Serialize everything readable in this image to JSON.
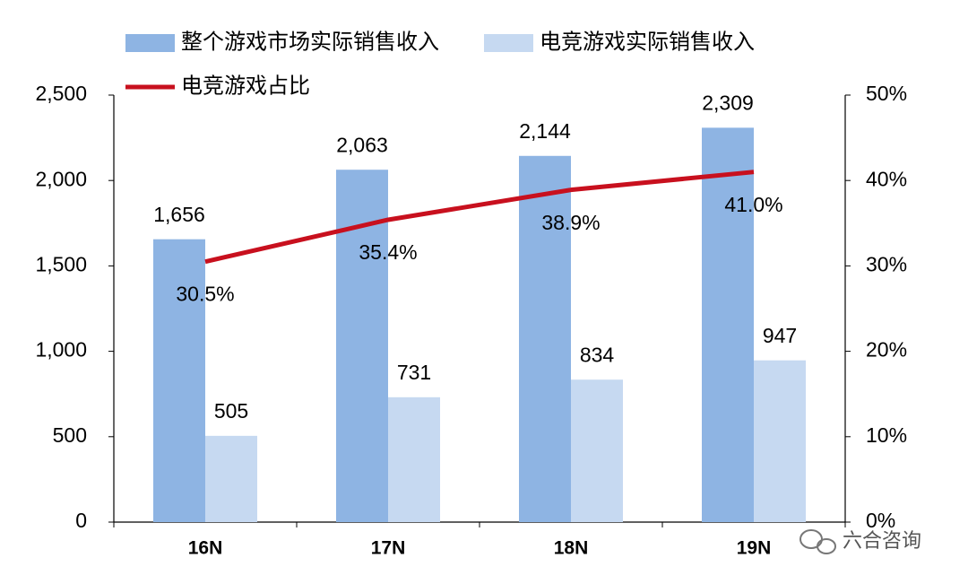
{
  "chart_data": {
    "type": "bar",
    "categories": [
      "16N",
      "17N",
      "18N",
      "19N"
    ],
    "series": [
      {
        "name": "整个游戏市场实际销售收入",
        "type": "bar",
        "color": "#8eb4e3",
        "values": [
          1656,
          2063,
          2144,
          2309
        ],
        "value_labels": [
          "1,656",
          "2,063",
          "2,144",
          "2,309"
        ]
      },
      {
        "name": "电竞游戏实际销售收入",
        "type": "bar",
        "color": "#c6d9f1",
        "values": [
          505,
          731,
          834,
          947
        ]
      },
      {
        "name": "电竞游戏占比",
        "type": "line",
        "axis": "y2",
        "color": "#c8101e",
        "values": [
          30.5,
          35.4,
          38.9,
          41.0
        ],
        "value_labels": [
          "30.5%",
          "35.4%",
          "38.9%",
          "41.0%"
        ]
      }
    ],
    "ylim": [
      0,
      2500
    ],
    "yticks": [
      0,
      500,
      {
        "value": 1000,
        "label": "1,000"
      },
      {
        "value": 1500,
        "label": "1,500"
      },
      {
        "value": 2000,
        "label": "2,000"
      },
      {
        "value": 2500,
        "label": "2,500"
      }
    ],
    "y2lim": [
      0,
      50
    ],
    "y2ticks": [
      {
        "value": 0,
        "label": "0%"
      },
      {
        "value": 10,
        "label": "10%"
      },
      {
        "value": 20,
        "label": "20%"
      },
      {
        "value": 30,
        "label": "30%"
      },
      {
        "value": 40,
        "label": "40%"
      },
      {
        "value": 50,
        "label": "50%"
      }
    ],
    "legend": "top",
    "grid": false,
    "watermark": "六合咨询"
  }
}
